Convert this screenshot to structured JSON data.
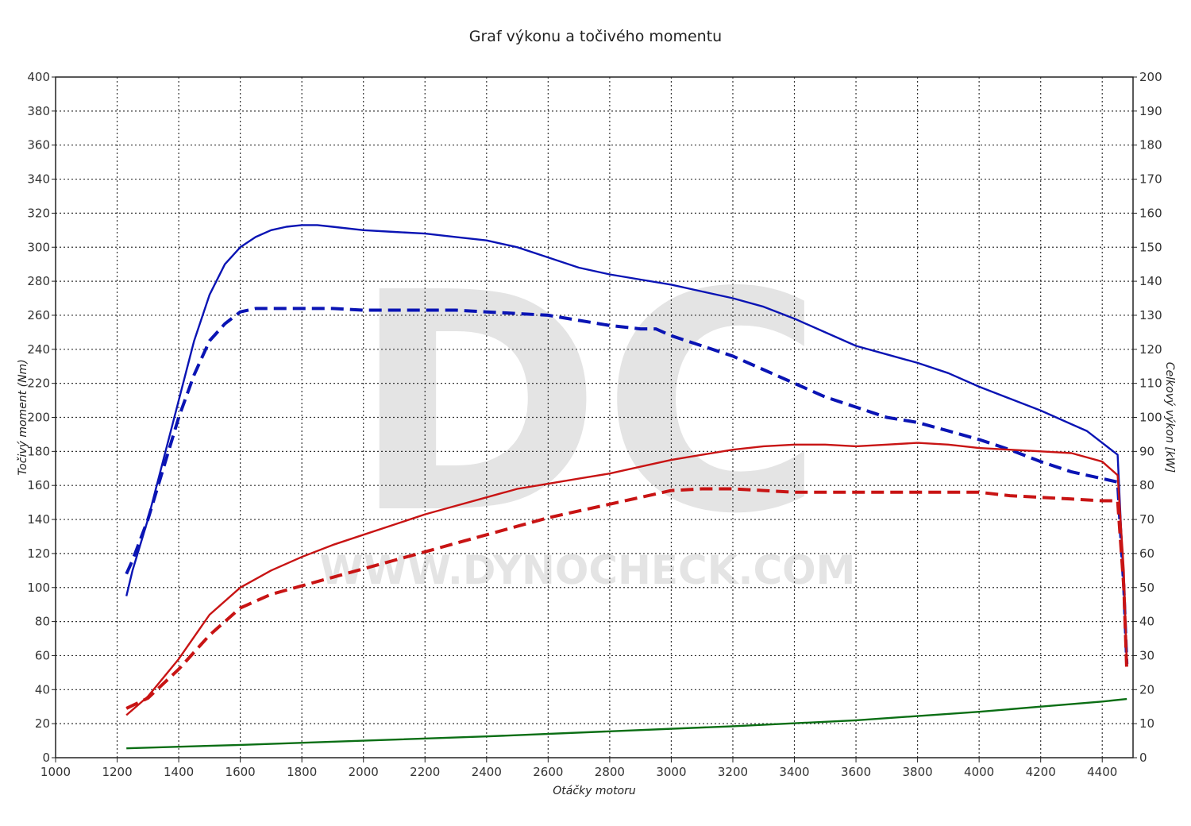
{
  "chart_data": {
    "type": "line",
    "title": "Graf výkonu a točivého momentu",
    "xlabel": "Otáčky motoru",
    "ylabel_left": "Točivý moment (Nm)",
    "ylabel_right": "Celkový výkon [kW]",
    "xlim": [
      1000,
      4500
    ],
    "ylim_left": [
      0,
      400
    ],
    "ylim_right": [
      0,
      200
    ],
    "x_ticks": [
      "1000",
      "1200",
      "1400",
      "1600",
      "1800",
      "2000",
      "2200",
      "2400",
      "2600",
      "2800",
      "3000",
      "3200",
      "3400",
      "3600",
      "3800",
      "4000",
      "4200",
      "4400"
    ],
    "y_left_ticks": [
      "0",
      "20",
      "40",
      "60",
      "80",
      "100",
      "120",
      "140",
      "160",
      "180",
      "200",
      "220",
      "240",
      "260",
      "280",
      "300",
      "320",
      "340",
      "360",
      "380",
      "400"
    ],
    "y_right_ticks": [
      "0",
      "10",
      "20",
      "30",
      "40",
      "50",
      "60",
      "70",
      "80",
      "90",
      "100",
      "110",
      "120",
      "130",
      "140",
      "150",
      "160",
      "170",
      "180",
      "190",
      "200"
    ],
    "grid": true,
    "watermark": {
      "logo": "DC",
      "url": "WWW.DYNOCHECK.COM"
    },
    "series": [
      {
        "color": "#0a14b4",
        "dash": "solid",
        "axis": "left",
        "points": [
          [
            1230,
            95
          ],
          [
            1250,
            110
          ],
          [
            1300,
            140
          ],
          [
            1350,
            175
          ],
          [
            1400,
            210
          ],
          [
            1450,
            245
          ],
          [
            1500,
            272
          ],
          [
            1550,
            290
          ],
          [
            1600,
            300
          ],
          [
            1650,
            306
          ],
          [
            1700,
            310
          ],
          [
            1750,
            312
          ],
          [
            1800,
            313
          ],
          [
            1850,
            313
          ],
          [
            1900,
            312
          ],
          [
            2000,
            310
          ],
          [
            2100,
            309
          ],
          [
            2200,
            308
          ],
          [
            2300,
            306
          ],
          [
            2400,
            304
          ],
          [
            2500,
            300
          ],
          [
            2600,
            294
          ],
          [
            2700,
            288
          ],
          [
            2800,
            284
          ],
          [
            2900,
            281
          ],
          [
            3000,
            278
          ],
          [
            3100,
            274
          ],
          [
            3200,
            270
          ],
          [
            3300,
            265
          ],
          [
            3400,
            258
          ],
          [
            3500,
            250
          ],
          [
            3600,
            242
          ],
          [
            3700,
            237
          ],
          [
            3800,
            232
          ],
          [
            3900,
            226
          ],
          [
            4000,
            218
          ],
          [
            4100,
            211
          ],
          [
            4200,
            204
          ],
          [
            4300,
            196
          ],
          [
            4350,
            192
          ],
          [
            4400,
            185
          ],
          [
            4450,
            178
          ],
          [
            4470,
            100
          ],
          [
            4480,
            55
          ]
        ]
      },
      {
        "color": "#0a14b4",
        "dash": "dashed",
        "axis": "left",
        "points": [
          [
            1230,
            108
          ],
          [
            1250,
            116
          ],
          [
            1300,
            140
          ],
          [
            1350,
            170
          ],
          [
            1400,
            200
          ],
          [
            1450,
            225
          ],
          [
            1500,
            245
          ],
          [
            1550,
            255
          ],
          [
            1600,
            262
          ],
          [
            1650,
            264
          ],
          [
            1700,
            264
          ],
          [
            1800,
            264
          ],
          [
            1900,
            264
          ],
          [
            2000,
            263
          ],
          [
            2100,
            263
          ],
          [
            2200,
            263
          ],
          [
            2300,
            263
          ],
          [
            2400,
            262
          ],
          [
            2500,
            261
          ],
          [
            2600,
            260
          ],
          [
            2700,
            257
          ],
          [
            2800,
            254
          ],
          [
            2900,
            252
          ],
          [
            2950,
            252
          ],
          [
            3000,
            248
          ],
          [
            3100,
            242
          ],
          [
            3200,
            236
          ],
          [
            3300,
            228
          ],
          [
            3400,
            220
          ],
          [
            3500,
            212
          ],
          [
            3600,
            206
          ],
          [
            3700,
            200
          ],
          [
            3800,
            197
          ],
          [
            3900,
            192
          ],
          [
            4000,
            187
          ],
          [
            4100,
            181
          ],
          [
            4200,
            174
          ],
          [
            4300,
            168
          ],
          [
            4400,
            164
          ],
          [
            4450,
            162
          ],
          [
            4470,
            100
          ],
          [
            4480,
            55
          ]
        ]
      },
      {
        "color": "#c81414",
        "dash": "solid",
        "axis": "right",
        "points": [
          [
            1230,
            12.5
          ],
          [
            1300,
            18
          ],
          [
            1400,
            29
          ],
          [
            1500,
            42
          ],
          [
            1600,
            50
          ],
          [
            1700,
            55
          ],
          [
            1800,
            59
          ],
          [
            1900,
            62.5
          ],
          [
            2000,
            65.5
          ],
          [
            2100,
            68.5
          ],
          [
            2200,
            71.5
          ],
          [
            2300,
            74
          ],
          [
            2400,
            76.5
          ],
          [
            2500,
            79
          ],
          [
            2600,
            80.5
          ],
          [
            2700,
            82
          ],
          [
            2800,
            83.5
          ],
          [
            2900,
            85.5
          ],
          [
            3000,
            87.5
          ],
          [
            3100,
            89
          ],
          [
            3200,
            90.5
          ],
          [
            3300,
            91.5
          ],
          [
            3400,
            92
          ],
          [
            3500,
            92
          ],
          [
            3600,
            91.5
          ],
          [
            3700,
            92
          ],
          [
            3800,
            92.5
          ],
          [
            3900,
            92
          ],
          [
            4000,
            91
          ],
          [
            4100,
            90.5
          ],
          [
            4200,
            90
          ],
          [
            4300,
            89.5
          ],
          [
            4400,
            87
          ],
          [
            4450,
            83
          ],
          [
            4470,
            55
          ],
          [
            4480,
            27
          ]
        ]
      },
      {
        "color": "#c81414",
        "dash": "dashed",
        "axis": "right",
        "points": [
          [
            1230,
            14.5
          ],
          [
            1300,
            17.5
          ],
          [
            1400,
            26
          ],
          [
            1500,
            36
          ],
          [
            1600,
            44
          ],
          [
            1700,
            48
          ],
          [
            1800,
            50.5
          ],
          [
            1900,
            53
          ],
          [
            2000,
            55.5
          ],
          [
            2100,
            58
          ],
          [
            2200,
            60.5
          ],
          [
            2300,
            63
          ],
          [
            2400,
            65.5
          ],
          [
            2500,
            68
          ],
          [
            2600,
            70.5
          ],
          [
            2700,
            72.5
          ],
          [
            2800,
            74.5
          ],
          [
            2900,
            76.5
          ],
          [
            3000,
            78.5
          ],
          [
            3100,
            79
          ],
          [
            3200,
            79
          ],
          [
            3300,
            78.5
          ],
          [
            3400,
            78
          ],
          [
            3500,
            78
          ],
          [
            3600,
            78
          ],
          [
            3700,
            78
          ],
          [
            3800,
            78
          ],
          [
            3900,
            78
          ],
          [
            4000,
            78
          ],
          [
            4100,
            77
          ],
          [
            4200,
            76.5
          ],
          [
            4300,
            76
          ],
          [
            4400,
            75.5
          ],
          [
            4450,
            75.5
          ],
          [
            4470,
            50
          ],
          [
            4480,
            25
          ]
        ]
      },
      {
        "color": "#0a6e14",
        "dash": "solid",
        "axis": "left",
        "points": [
          [
            1230,
            5.5
          ],
          [
            1600,
            7.5
          ],
          [
            2000,
            10
          ],
          [
            2400,
            12.5
          ],
          [
            2800,
            15.5
          ],
          [
            3200,
            18.5
          ],
          [
            3600,
            22
          ],
          [
            4000,
            27
          ],
          [
            4200,
            30
          ],
          [
            4400,
            33
          ],
          [
            4480,
            34.5
          ]
        ]
      }
    ]
  }
}
